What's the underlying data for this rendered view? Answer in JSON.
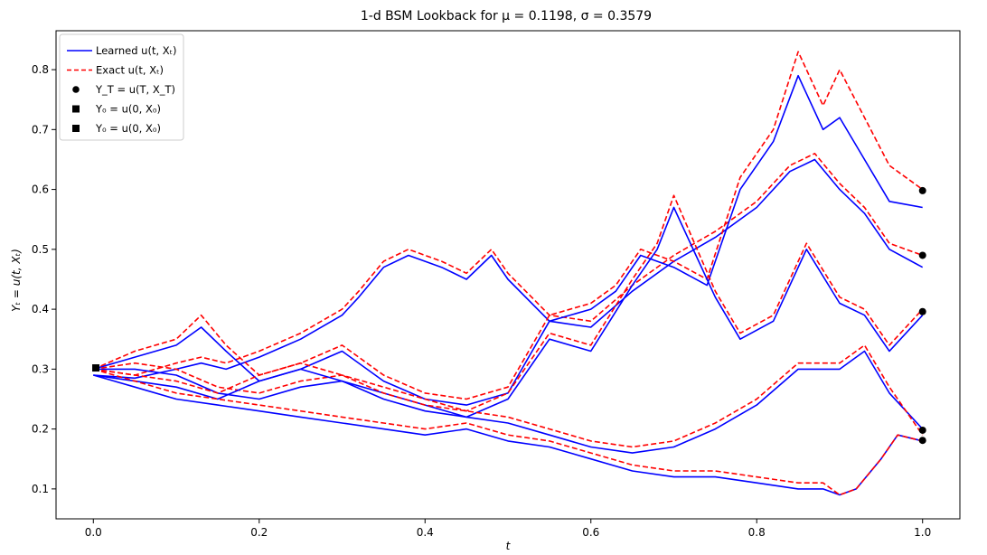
{
  "chart_data": {
    "type": "line",
    "title": "1-d BSM Lookback for μ = 0.1198, σ = 0.3579",
    "xlabel": "t",
    "ylabel": "Yₜ = u(t, Xₜ)",
    "xlim": [
      -0.045,
      1.045
    ],
    "ylim": [
      0.05,
      0.865
    ],
    "xticks": [
      0.0,
      0.2,
      0.4,
      0.6,
      0.8,
      1.0
    ],
    "xtick_labels": [
      "0.0",
      "0.2",
      "0.4",
      "0.6",
      "0.8",
      "1.0"
    ],
    "yticks": [
      0.1,
      0.2,
      0.3,
      0.4,
      0.5,
      0.6,
      0.7,
      0.8
    ],
    "ytick_labels": [
      "0.1",
      "0.2",
      "0.3",
      "0.4",
      "0.5",
      "0.6",
      "0.7",
      "0.8"
    ],
    "grid": false,
    "legend_position": "top-left",
    "legend": [
      {
        "label": "Learned u(t, Xₜ)",
        "kind": "line",
        "color": "#0000ff",
        "dashed": false
      },
      {
        "label": "Exact u(t, Xₜ)",
        "kind": "line",
        "color": "#ff0000",
        "dashed": true
      },
      {
        "label": "Y_T = u(T, X_T)",
        "kind": "circle",
        "color": "#000000"
      },
      {
        "label": "Y₀ = u(0, X₀)",
        "kind": "square",
        "color": "#000000"
      },
      {
        "label": "Y₀ = u(0, X₀)",
        "kind": "square",
        "color": "#000000"
      }
    ],
    "series": [
      {
        "x": [
          0.0,
          0.05,
          0.1,
          0.13,
          0.16,
          0.2,
          0.25,
          0.3,
          0.32,
          0.35,
          0.38,
          0.4,
          0.42,
          0.45,
          0.48,
          0.5,
          0.55,
          0.6,
          0.65,
          0.7,
          0.75,
          0.8,
          0.84,
          0.87,
          0.9,
          0.93,
          0.96,
          1.0
        ],
        "learned": [
          0.29,
          0.285,
          0.3,
          0.31,
          0.3,
          0.32,
          0.35,
          0.39,
          0.42,
          0.47,
          0.49,
          0.48,
          0.47,
          0.45,
          0.49,
          0.45,
          0.38,
          0.37,
          0.43,
          0.48,
          0.52,
          0.57,
          0.63,
          0.65,
          0.6,
          0.56,
          0.5,
          0.47
        ],
        "exact": [
          0.3,
          0.29,
          0.31,
          0.32,
          0.31,
          0.33,
          0.36,
          0.4,
          0.43,
          0.48,
          0.5,
          0.49,
          0.48,
          0.46,
          0.5,
          0.46,
          0.39,
          0.38,
          0.44,
          0.49,
          0.53,
          0.58,
          0.64,
          0.66,
          0.61,
          0.57,
          0.51,
          0.49
        ]
      },
      {
        "x": [
          0.0,
          0.05,
          0.1,
          0.13,
          0.16,
          0.2,
          0.25,
          0.3,
          0.35,
          0.4,
          0.45,
          0.5,
          0.55,
          0.6,
          0.63,
          0.66,
          0.7,
          0.74,
          0.78,
          0.82,
          0.85,
          0.88,
          0.9,
          0.93,
          0.96,
          1.0
        ],
        "learned": [
          0.3,
          0.32,
          0.34,
          0.37,
          0.33,
          0.28,
          0.3,
          0.33,
          0.28,
          0.25,
          0.24,
          0.26,
          0.38,
          0.4,
          0.43,
          0.49,
          0.47,
          0.44,
          0.6,
          0.68,
          0.79,
          0.7,
          0.72,
          0.65,
          0.58,
          0.57
        ],
        "exact": [
          0.3,
          0.33,
          0.35,
          0.39,
          0.34,
          0.29,
          0.31,
          0.34,
          0.29,
          0.26,
          0.25,
          0.27,
          0.39,
          0.41,
          0.44,
          0.5,
          0.48,
          0.45,
          0.62,
          0.7,
          0.83,
          0.74,
          0.8,
          0.72,
          0.64,
          0.6
        ]
      },
      {
        "x": [
          0.0,
          0.05,
          0.1,
          0.15,
          0.2,
          0.25,
          0.3,
          0.35,
          0.4,
          0.45,
          0.5,
          0.55,
          0.6,
          0.65,
          0.68,
          0.7,
          0.75,
          0.78,
          0.82,
          0.86,
          0.9,
          0.93,
          0.96,
          1.0
        ],
        "learned": [
          0.3,
          0.3,
          0.29,
          0.26,
          0.25,
          0.27,
          0.28,
          0.26,
          0.24,
          0.22,
          0.25,
          0.35,
          0.33,
          0.44,
          0.5,
          0.57,
          0.42,
          0.35,
          0.38,
          0.5,
          0.41,
          0.39,
          0.33,
          0.39
        ],
        "exact": [
          0.3,
          0.31,
          0.3,
          0.27,
          0.26,
          0.28,
          0.29,
          0.27,
          0.25,
          0.23,
          0.26,
          0.36,
          0.34,
          0.45,
          0.51,
          0.59,
          0.43,
          0.36,
          0.39,
          0.51,
          0.42,
          0.4,
          0.34,
          0.4
        ]
      },
      {
        "x": [
          0.0,
          0.05,
          0.1,
          0.15,
          0.2,
          0.25,
          0.3,
          0.35,
          0.4,
          0.45,
          0.5,
          0.55,
          0.6,
          0.65,
          0.7,
          0.75,
          0.8,
          0.85,
          0.9,
          0.93,
          0.96,
          1.0
        ],
        "learned": [
          0.29,
          0.28,
          0.27,
          0.25,
          0.28,
          0.3,
          0.28,
          0.25,
          0.23,
          0.22,
          0.21,
          0.19,
          0.17,
          0.16,
          0.17,
          0.2,
          0.24,
          0.3,
          0.3,
          0.33,
          0.26,
          0.2
        ],
        "exact": [
          0.3,
          0.29,
          0.28,
          0.26,
          0.29,
          0.31,
          0.29,
          0.26,
          0.24,
          0.23,
          0.22,
          0.2,
          0.18,
          0.17,
          0.18,
          0.21,
          0.25,
          0.31,
          0.31,
          0.34,
          0.27,
          0.19
        ]
      },
      {
        "x": [
          0.0,
          0.05,
          0.1,
          0.15,
          0.2,
          0.25,
          0.3,
          0.35,
          0.4,
          0.45,
          0.5,
          0.55,
          0.6,
          0.65,
          0.7,
          0.75,
          0.8,
          0.85,
          0.88,
          0.9,
          0.92,
          0.95,
          0.97,
          1.0
        ],
        "learned": [
          0.29,
          0.27,
          0.25,
          0.24,
          0.23,
          0.22,
          0.21,
          0.2,
          0.19,
          0.2,
          0.18,
          0.17,
          0.15,
          0.13,
          0.12,
          0.12,
          0.11,
          0.1,
          0.1,
          0.09,
          0.1,
          0.15,
          0.19,
          0.18
        ],
        "exact": [
          0.3,
          0.28,
          0.26,
          0.25,
          0.24,
          0.23,
          0.22,
          0.21,
          0.2,
          0.21,
          0.19,
          0.18,
          0.16,
          0.14,
          0.13,
          0.13,
          0.12,
          0.11,
          0.11,
          0.09,
          0.1,
          0.15,
          0.19,
          0.18
        ]
      }
    ],
    "terminal_points": [
      0.598,
      0.49,
      0.396,
      0.198,
      0.181
    ],
    "initial_point": {
      "x": 0.003,
      "y": 0.302
    }
  }
}
